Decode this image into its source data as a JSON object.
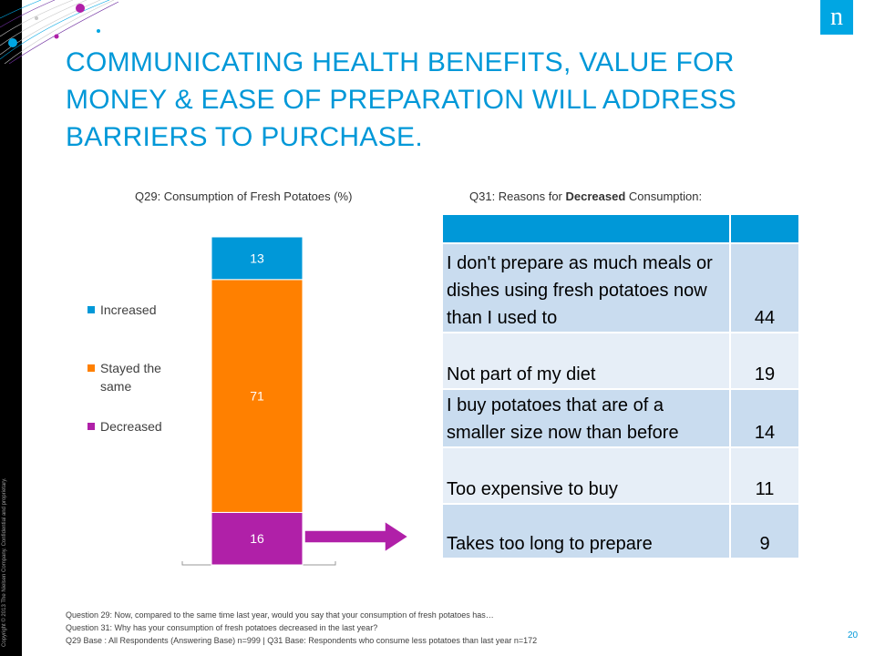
{
  "copyright": "Copyright © 2013 The Nielsen Company. Confidential and proprietary.",
  "logo": "n",
  "title": "COMMUNICATING HEALTH BENEFITS, VALUE FOR MONEY & EASE OF PREPARATION WILL ADDRESS BARRIERS TO PURCHASE.",
  "colors": {
    "increased": "#0098d8",
    "stayed": "#ff8000",
    "decreased": "#b020a8",
    "table_header": "#0098d8",
    "row_dark": "#c9dcef",
    "row_light": "#e6eef7"
  },
  "chart_data": {
    "type": "bar",
    "title": "Q29: Consumption of Fresh Potatoes (%)",
    "stacked": true,
    "categories": [
      ""
    ],
    "series": [
      {
        "name": "Decreased",
        "values": [
          16
        ]
      },
      {
        "name": "Stayed the same",
        "values": [
          71
        ]
      },
      {
        "name": "Increased",
        "values": [
          13
        ]
      }
    ],
    "data_labels": [
      "16",
      "71",
      "13"
    ],
    "ylim": [
      0,
      100
    ],
    "legend_position": "left"
  },
  "table": {
    "title_prefix": "Q31: Reasons for ",
    "title_bold": "Decreased",
    "title_suffix": " Consumption:",
    "rows": [
      {
        "reason": "I don't prepare as much meals or dishes using fresh potatoes now than I used to",
        "value": "44"
      },
      {
        "reason": "Not part of my diet",
        "value": "19"
      },
      {
        "reason": "I buy potatoes that are of a smaller size now than before",
        "value": "14"
      },
      {
        "reason": "Too expensive to buy",
        "value": "11"
      },
      {
        "reason": "Takes too long to prepare",
        "value": "9"
      }
    ]
  },
  "footnotes": [
    "Question 29: Now, compared to the same time last year, would you say that your consumption of fresh potatoes has…",
    "Question 31: Why has your consumption of fresh potatoes decreased in the last year?",
    "Q29 Base : All Respondents (Answering Base) n=999 | Q31 Base: Respondents who consume less potatoes than last year n=172"
  ],
  "page_number": "20"
}
